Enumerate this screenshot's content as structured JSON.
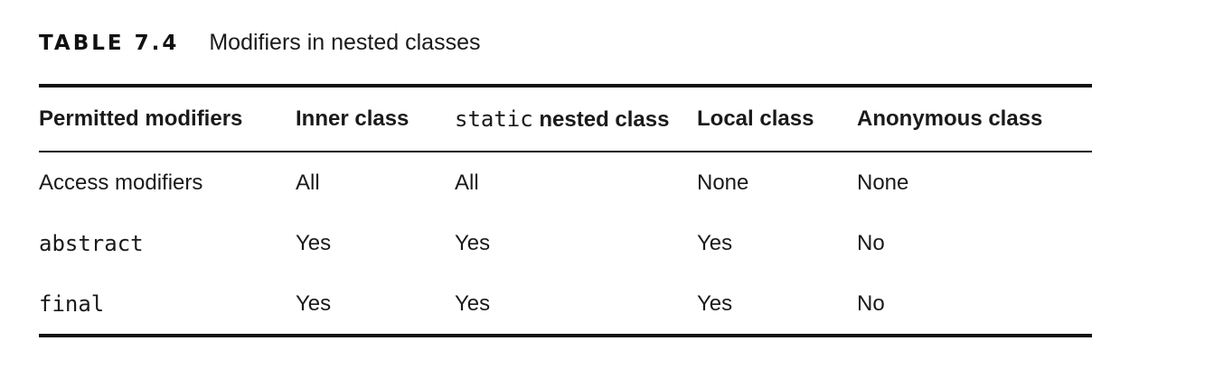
{
  "caption": {
    "label": "TABLE 7.4",
    "title": "Modifiers in nested classes"
  },
  "table": {
    "headers": {
      "permitted_modifiers": "Permitted modifiers",
      "inner_class": "Inner class",
      "static_keyword": "static",
      "static_suffix": " nested class",
      "local_class": "Local class",
      "anonymous_class": "Anonymous class"
    },
    "rows": [
      {
        "modifier": "Access modifiers",
        "modifier_is_code": false,
        "inner": "All",
        "static_nested": "All",
        "local": "None",
        "anonymous": "None"
      },
      {
        "modifier": "abstract",
        "modifier_is_code": true,
        "inner": "Yes",
        "static_nested": "Yes",
        "local": "Yes",
        "anonymous": "No"
      },
      {
        "modifier": "final",
        "modifier_is_code": true,
        "inner": "Yes",
        "static_nested": "Yes",
        "local": "Yes",
        "anonymous": "No"
      }
    ]
  }
}
